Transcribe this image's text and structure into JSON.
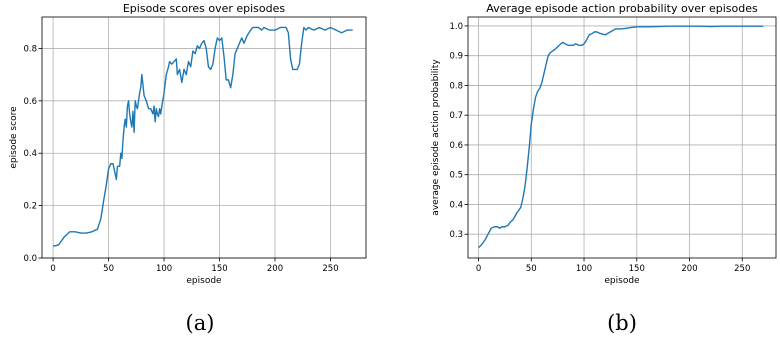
{
  "chart_data": [
    {
      "type": "line",
      "title": "Episode scores over episodes",
      "xlabel": "episode",
      "ylabel": "episode score",
      "xlim": [
        -10,
        282
      ],
      "ylim": [
        0.0,
        0.92
      ],
      "xticks": [
        0,
        50,
        100,
        150,
        200,
        250
      ],
      "yticks": [
        0.0,
        0.2,
        0.4,
        0.6,
        0.8
      ],
      "ytick_labels": [
        "0.0",
        "0.2",
        "0.4",
        "0.6",
        "0.8"
      ],
      "grid": true,
      "color": "#1f77b4",
      "caption": "(a)",
      "series": [
        {
          "x": [
            0,
            5,
            10,
            15,
            20,
            25,
            30,
            35,
            40,
            43,
            46,
            48,
            50,
            52,
            54,
            55,
            57,
            58,
            60,
            61,
            62,
            63,
            64,
            65,
            66,
            67,
            68,
            69,
            70,
            71,
            72,
            73,
            74,
            75,
            76,
            77,
            78,
            79,
            80,
            82,
            84,
            86,
            88,
            90,
            91,
            92,
            93,
            94,
            95,
            96,
            97,
            98,
            100,
            102,
            104,
            105,
            107,
            109,
            111,
            112,
            114,
            116,
            118,
            120,
            122,
            124,
            126,
            128,
            130,
            132,
            134,
            136,
            138,
            140,
            142,
            144,
            146,
            148,
            150,
            152,
            154,
            156,
            158,
            160,
            162,
            164,
            166,
            168,
            170,
            172,
            175,
            178,
            180,
            182,
            185,
            188,
            190,
            195,
            200,
            205,
            210,
            212,
            214,
            216,
            218,
            220,
            222,
            224,
            226,
            228,
            230,
            235,
            240,
            245,
            250,
            255,
            260,
            265,
            270
          ],
          "y": [
            0.045,
            0.05,
            0.08,
            0.1,
            0.1,
            0.095,
            0.095,
            0.1,
            0.11,
            0.15,
            0.23,
            0.28,
            0.34,
            0.36,
            0.36,
            0.34,
            0.3,
            0.35,
            0.35,
            0.4,
            0.38,
            0.45,
            0.5,
            0.53,
            0.5,
            0.58,
            0.6,
            0.55,
            0.52,
            0.5,
            0.56,
            0.48,
            0.6,
            0.58,
            0.57,
            0.6,
            0.63,
            0.65,
            0.7,
            0.62,
            0.6,
            0.57,
            0.57,
            0.55,
            0.58,
            0.52,
            0.57,
            0.55,
            0.54,
            0.57,
            0.55,
            0.58,
            0.63,
            0.7,
            0.73,
            0.75,
            0.74,
            0.75,
            0.76,
            0.7,
            0.72,
            0.67,
            0.72,
            0.7,
            0.75,
            0.73,
            0.79,
            0.78,
            0.81,
            0.8,
            0.82,
            0.83,
            0.8,
            0.73,
            0.72,
            0.74,
            0.8,
            0.84,
            0.83,
            0.84,
            0.77,
            0.68,
            0.68,
            0.65,
            0.7,
            0.78,
            0.8,
            0.82,
            0.84,
            0.82,
            0.85,
            0.87,
            0.88,
            0.88,
            0.88,
            0.87,
            0.88,
            0.87,
            0.87,
            0.88,
            0.88,
            0.86,
            0.76,
            0.72,
            0.72,
            0.72,
            0.74,
            0.82,
            0.88,
            0.87,
            0.88,
            0.87,
            0.88,
            0.87,
            0.88,
            0.87,
            0.86,
            0.87,
            0.87
          ]
        }
      ]
    },
    {
      "type": "line",
      "title": "Average episode action probability over episodes",
      "xlabel": "episode",
      "ylabel": "average episode action probability",
      "xlim": [
        -10,
        282
      ],
      "ylim": [
        0.22,
        1.03
      ],
      "xticks": [
        0,
        50,
        100,
        150,
        200,
        250
      ],
      "yticks": [
        0.3,
        0.4,
        0.5,
        0.6,
        0.7,
        0.8,
        0.9,
        1.0
      ],
      "ytick_labels": [
        "0.3",
        "0.4",
        "0.5",
        "0.6",
        "0.7",
        "0.8",
        "0.9",
        "1.0"
      ],
      "grid": true,
      "color": "#1f77b4",
      "caption": "(b)",
      "series": [
        {
          "x": [
            0,
            3,
            6,
            9,
            12,
            15,
            18,
            20,
            22,
            25,
            28,
            30,
            33,
            36,
            38,
            40,
            42,
            44,
            46,
            48,
            50,
            52,
            54,
            56,
            58,
            60,
            62,
            64,
            66,
            68,
            70,
            72,
            75,
            78,
            80,
            82,
            85,
            88,
            90,
            92,
            95,
            98,
            100,
            102,
            105,
            108,
            110,
            112,
            115,
            120,
            125,
            130,
            135,
            140,
            145,
            150,
            155,
            160,
            170,
            180,
            190,
            200,
            210,
            220,
            230,
            240,
            250,
            260,
            270
          ],
          "y": [
            0.255,
            0.265,
            0.28,
            0.3,
            0.32,
            0.325,
            0.325,
            0.32,
            0.325,
            0.325,
            0.33,
            0.34,
            0.35,
            0.37,
            0.38,
            0.39,
            0.42,
            0.46,
            0.52,
            0.59,
            0.67,
            0.72,
            0.76,
            0.78,
            0.79,
            0.81,
            0.84,
            0.87,
            0.9,
            0.91,
            0.915,
            0.92,
            0.93,
            0.94,
            0.945,
            0.94,
            0.935,
            0.935,
            0.935,
            0.94,
            0.935,
            0.935,
            0.94,
            0.95,
            0.97,
            0.975,
            0.98,
            0.98,
            0.975,
            0.97,
            0.98,
            0.99,
            0.99,
            0.992,
            0.995,
            0.997,
            0.997,
            0.997,
            0.998,
            0.999,
            0.999,
            0.999,
            0.999,
            0.998,
            0.999,
            0.999,
            0.999,
            0.999,
            0.999
          ]
        }
      ]
    }
  ]
}
